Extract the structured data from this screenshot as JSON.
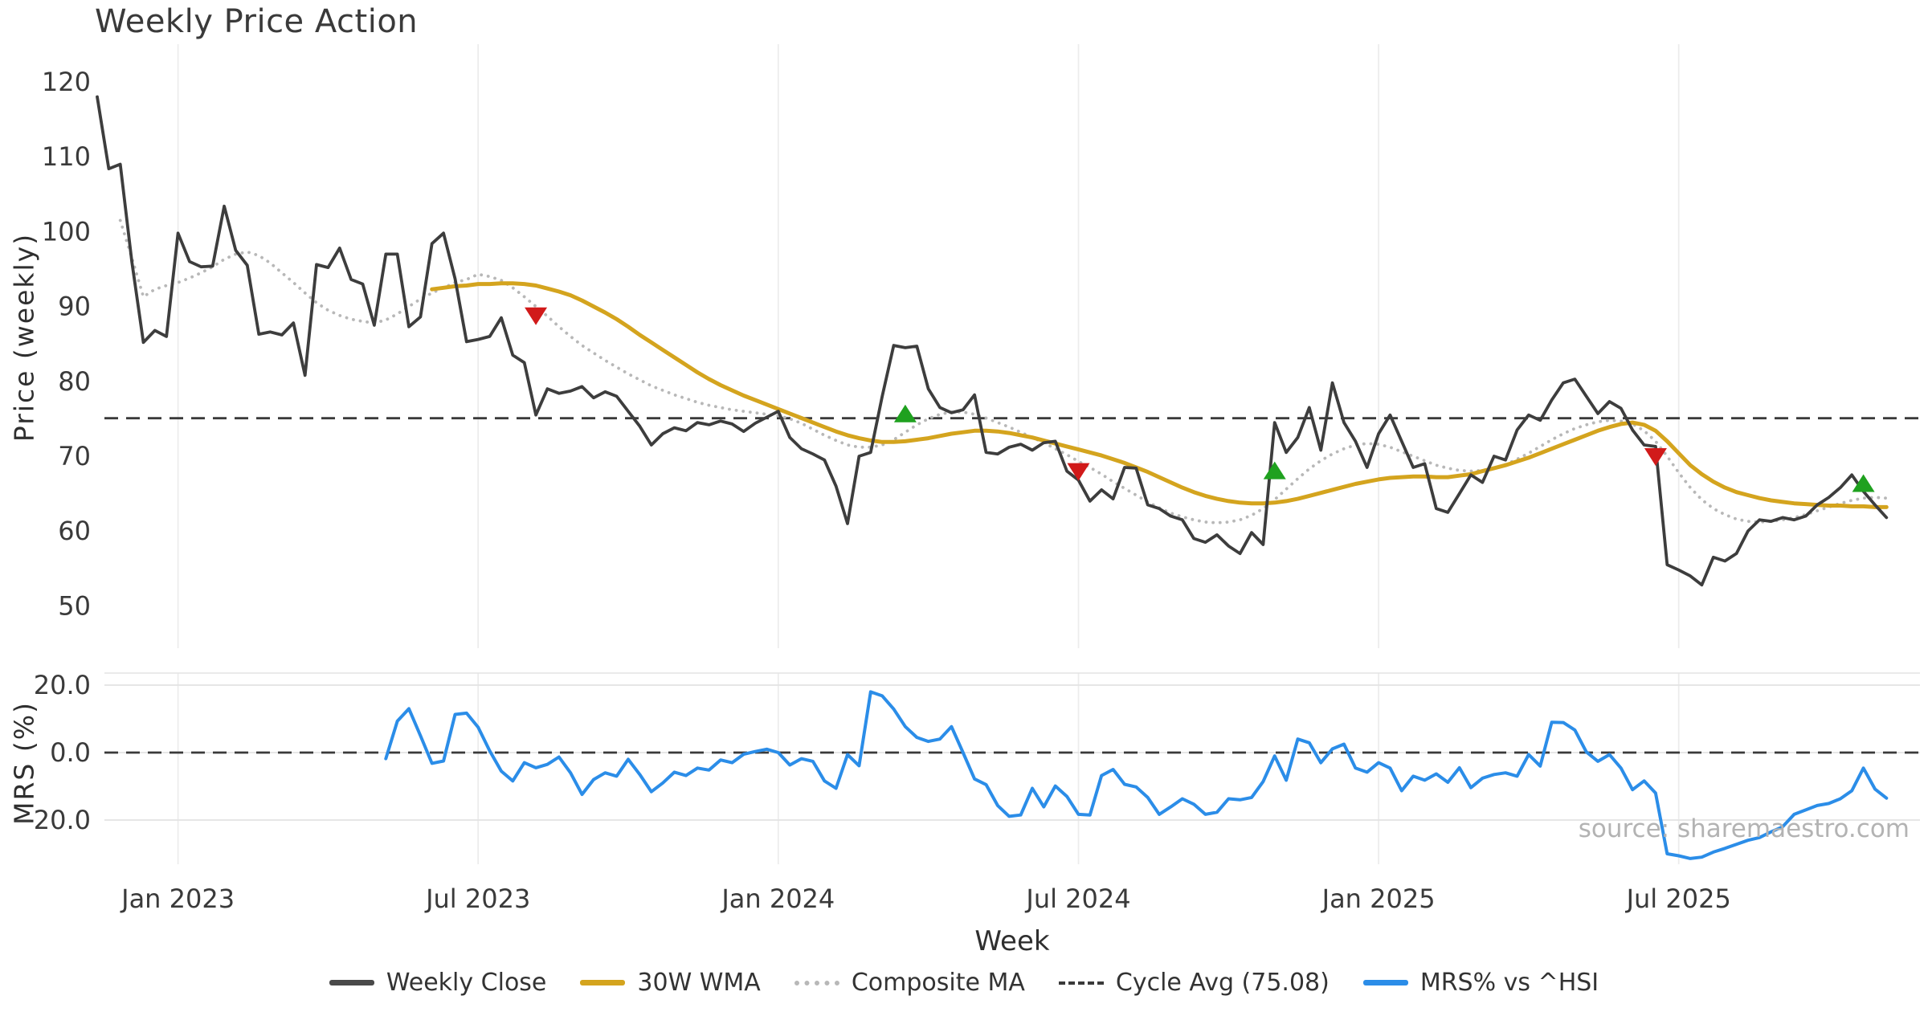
{
  "header": {
    "title": "Weekly Price Action"
  },
  "watermark": "source: sharemaestro.com",
  "axis_labels": {
    "price": "Price (weekly)",
    "mrs": "MRS (%)",
    "x": "Week"
  },
  "legend": {
    "items": [
      {
        "label": "Weekly Close",
        "style": "solid",
        "color": "#4a4a4a"
      },
      {
        "label": "30W WMA",
        "style": "solid",
        "color": "#d4a41e"
      },
      {
        "label": "Composite MA",
        "style": "dotted",
        "color": "#b8b8b8"
      },
      {
        "label": "Cycle Avg (75.08)",
        "style": "dashed",
        "color": "#3a3a3a"
      },
      {
        "label": "MRS% vs ^HSI",
        "style": "solid",
        "color": "#2b8de8"
      }
    ]
  },
  "colors": {
    "close": "#3d3d3d",
    "wma": "#d4a41e",
    "composite": "#b8b8b8",
    "cycle_avg": "#3a3a3a",
    "mrs": "#2b8de8",
    "sell_marker": "#d11a1a",
    "buy_marker": "#1fa11f",
    "grid": "#ececec",
    "grid_h": "#e3e3e3",
    "tick_text": "#3a3a3a"
  },
  "chart_data": [
    {
      "type": "line",
      "panel": "price",
      "title": "Weekly Price Action",
      "ylabel": "Price (weekly)",
      "xlabel": "Week",
      "ylim": [
        44,
        125
      ],
      "yticks": [
        120,
        110,
        100,
        90,
        80,
        70,
        60,
        50
      ],
      "grid": "vertical",
      "x_ticks": [
        {
          "week": 7,
          "label": "Jan 2023"
        },
        {
          "week": 33,
          "label": "Jul 2023"
        },
        {
          "week": 59,
          "label": "Jan 2024"
        },
        {
          "week": 85,
          "label": "Jul 2024"
        },
        {
          "week": 111,
          "label": "Jan 2025"
        },
        {
          "week": 137,
          "label": "Jul 2025"
        }
      ],
      "cycle_avg": 75.08,
      "series": [
        {
          "name": "Weekly Close",
          "style": "solid",
          "color": "#3d3d3d",
          "start_week": 0,
          "values": [
            118,
            108.4,
            109,
            96,
            85.2,
            86.8,
            86,
            99.8,
            96,
            95.3,
            95.4,
            103.4,
            97.5,
            95.5,
            86.3,
            86.6,
            86.2,
            87.8,
            80.8,
            95.6,
            95.2,
            97.8,
            93.6,
            93,
            87.5,
            97,
            97,
            87.3,
            88.6,
            98.4,
            99.8,
            93.7,
            85.3,
            85.6,
            86,
            88.5,
            83.5,
            82.5,
            75.5,
            79,
            78.4,
            78.7,
            79.3,
            77.8,
            78.6,
            78,
            76,
            74,
            71.5,
            73,
            73.8,
            73.4,
            74.5,
            74.2,
            74.7,
            74.3,
            73.3,
            74.4,
            75.2,
            76,
            72.5,
            71,
            70.3,
            69.5,
            66,
            61,
            70,
            70.5,
            78,
            84.8,
            84.5,
            84.7,
            79,
            76.5,
            75.8,
            76.2,
            78.2,
            70.5,
            70.3,
            71.2,
            71.6,
            70.8,
            71.8,
            72,
            68,
            66.8,
            64,
            65.5,
            64.3,
            68.5,
            68.4,
            63.5,
            63,
            62,
            61.5,
            59,
            58.5,
            59.5,
            58,
            57,
            59.8,
            58.2,
            74.5,
            70.5,
            72.5,
            76.5,
            70.8,
            79.8,
            74.5,
            72,
            68.5,
            73,
            75.5,
            72,
            68.5,
            69,
            63,
            62.5,
            65,
            67.5,
            66.5,
            70,
            69.5,
            73.5,
            75.5,
            74.8,
            77.5,
            79.8,
            80.3,
            78,
            75.7,
            77.3,
            76.4,
            73.5,
            71.5,
            71.3,
            55.5,
            54.8,
            54,
            52.8,
            56.5,
            56,
            57,
            60,
            61.5,
            61.3,
            61.8,
            61.5,
            62,
            63.5,
            64.5,
            65.8,
            67.5,
            65.3,
            63.5,
            61.8
          ]
        },
        {
          "name": "30W WMA",
          "style": "solid",
          "color": "#d4a41e",
          "start_week": 29,
          "values": [
            92.3,
            92.5,
            92.7,
            92.8,
            93,
            93,
            93.1,
            93.1,
            93,
            92.8,
            92.4,
            92,
            91.5,
            90.8,
            90,
            89.2,
            88.3,
            87.3,
            86.2,
            85.2,
            84.2,
            83.2,
            82.2,
            81.2,
            80.3,
            79.5,
            78.8,
            78.1,
            77.5,
            76.9,
            76.3,
            75.7,
            75.1,
            74.5,
            73.9,
            73.3,
            72.8,
            72.4,
            72.1,
            71.9,
            71.9,
            72,
            72.2,
            72.4,
            72.7,
            73,
            73.2,
            73.4,
            73.4,
            73.3,
            73.1,
            72.8,
            72.5,
            72.1,
            71.7,
            71.3,
            70.9,
            70.5,
            70.1,
            69.6,
            69.1,
            68.5,
            67.9,
            67.2,
            66.5,
            65.8,
            65.2,
            64.7,
            64.3,
            64,
            63.8,
            63.7,
            63.7,
            63.8,
            64,
            64.3,
            64.7,
            65.1,
            65.5,
            65.9,
            66.3,
            66.6,
            66.9,
            67.1,
            67.2,
            67.3,
            67.3,
            67.2,
            67.2,
            67.4,
            67.6,
            68,
            68.4,
            68.8,
            69.3,
            69.8,
            70.4,
            71,
            71.6,
            72.2,
            72.8,
            73.4,
            73.9,
            74.3,
            74.5,
            74.2,
            73.4,
            72,
            70.4,
            68.8,
            67.6,
            66.6,
            65.8,
            65.2,
            64.8,
            64.4,
            64.1,
            63.9,
            63.7,
            63.6,
            63.5,
            63.4,
            63.4,
            63.3,
            63.3,
            63.2,
            63.2
          ]
        },
        {
          "name": "Composite MA",
          "style": "dotted",
          "color": "#b8b8b8",
          "start_week": 2,
          "values": [
            101.5,
            96.5,
            91.3,
            92.3,
            92.8,
            93.2,
            93.8,
            94.5,
            95.3,
            96.3,
            97,
            97.3,
            96.8,
            95.8,
            94.5,
            93.2,
            91.8,
            90.5,
            89.5,
            88.8,
            88.3,
            88,
            87.8,
            88.2,
            89,
            90,
            91,
            91.8,
            92.5,
            93.2,
            93.6,
            94.3,
            94,
            93.5,
            92.5,
            91.3,
            90,
            88.7,
            87.3,
            86,
            84.8,
            83.8,
            82.8,
            81.9,
            81,
            80.2,
            79.4,
            78.8,
            78.2,
            77.7,
            77.2,
            76.8,
            76.5,
            76.2,
            76,
            75.8,
            75.6,
            75.4,
            75,
            74.4,
            73.6,
            72.8,
            72.1,
            71.5,
            71.2,
            71.2,
            71.5,
            72.2,
            73.2,
            74.2,
            75,
            75.6,
            75.9,
            75.9,
            75.6,
            75.1,
            74.5,
            73.9,
            73.2,
            72.5,
            71.8,
            71,
            70.2,
            69.3,
            68.5,
            67.6,
            66.6,
            65.7,
            64.8,
            63.9,
            63.1,
            62.4,
            61.9,
            61.5,
            61.2,
            61.1,
            61.2,
            61.5,
            62.1,
            63,
            64.2,
            65.6,
            67,
            68.3,
            69.4,
            70.3,
            71,
            71.5,
            71.7,
            71.6,
            71.2,
            70.6,
            70,
            69.4,
            68.8,
            68.4,
            68.1,
            68,
            68.1,
            68.4,
            68.9,
            69.6,
            70.4,
            71.3,
            72.2,
            73,
            73.7,
            74.2,
            74.6,
            74.8,
            74.7,
            74.3,
            73.4,
            72,
            70,
            67.8,
            65.8,
            64.2,
            63,
            62.2,
            61.6,
            61.3,
            61.2,
            61.3,
            61.5,
            61.8,
            62.2,
            62.7,
            63.2,
            63.7,
            64.1,
            64.4,
            64.5,
            64.4
          ]
        },
        {
          "name": "Cycle Avg (75.08)",
          "style": "dashed",
          "color": "#3a3a3a",
          "value": 75.08
        }
      ],
      "markers": {
        "sell": {
          "shape": "triangle-down",
          "color": "#d11a1a",
          "points": [
            {
              "week": 38,
              "price": 88.8
            },
            {
              "week": 85,
              "price": 68.0
            },
            {
              "week": 135,
              "price": 70.0
            }
          ]
        },
        "buy": {
          "shape": "triangle-up",
          "color": "#1fa11f",
          "points": [
            {
              "week": 70,
              "price": 75.6
            },
            {
              "week": 102,
              "price": 68.0
            },
            {
              "week": 153,
              "price": 66.3
            }
          ]
        }
      }
    },
    {
      "type": "line",
      "panel": "mrs",
      "ylabel": "MRS (%)",
      "ylim": [
        -33,
        24
      ],
      "yticks": [
        {
          "value": 20,
          "label": "20.0"
        },
        {
          "value": 0,
          "label": "0.0"
        },
        {
          "value": -20,
          "label": "−20.0"
        }
      ],
      "zero_line": 0,
      "grid": "both",
      "series": [
        {
          "name": "MRS% vs ^HSI",
          "style": "solid",
          "color": "#2b8de8",
          "start_week": 25,
          "values": [
            -1.8,
            9.3,
            13,
            5,
            -3.2,
            -2.5,
            11.3,
            11.7,
            7.5,
            0.5,
            -5.5,
            -8.4,
            -3,
            -4.5,
            -3.5,
            -1.3,
            -6,
            -12.4,
            -8,
            -6,
            -7,
            -2,
            -6.5,
            -11.6,
            -9,
            -5.8,
            -6.8,
            -4.6,
            -5.2,
            -2.2,
            -3,
            -0.5,
            0.3,
            1,
            0,
            -3.7,
            -1.8,
            -2.6,
            -8.4,
            -10.6,
            -0.6,
            -3.9,
            18,
            16.8,
            12.9,
            7.7,
            4.5,
            3.3,
            4,
            7.7,
            0,
            -7.8,
            -9.5,
            -15.7,
            -18.9,
            -18.5,
            -10.6,
            -16.1,
            -9.9,
            -13,
            -18.3,
            -18.5,
            -6.8,
            -5,
            -9.4,
            -10.2,
            -13.3,
            -18.3,
            -16.1,
            -13.7,
            -15.3,
            -18.3,
            -17.7,
            -13.7,
            -14,
            -13.3,
            -8.6,
            -1,
            -8.2,
            4,
            2.9,
            -3,
            1.1,
            2.5,
            -4.6,
            -5.8,
            -3,
            -4.6,
            -11.3,
            -7,
            -8.2,
            -6.3,
            -8.8,
            -4.5,
            -10.4,
            -7.6,
            -6.5,
            -6,
            -7,
            -0.6,
            -4,
            9,
            8.9,
            6.7,
            0.2,
            -2.6,
            -0.6,
            -4.6,
            -11,
            -8.4,
            -12,
            -30,
            -30.6,
            -31.4,
            -31,
            -29.5,
            -28.4,
            -27.2,
            -26,
            -25.2,
            -23.5,
            -22,
            -18.3,
            -17,
            -15.7,
            -15.1,
            -13.7,
            -11.3,
            -4.6,
            -10.8,
            -13.5
          ]
        }
      ]
    }
  ]
}
